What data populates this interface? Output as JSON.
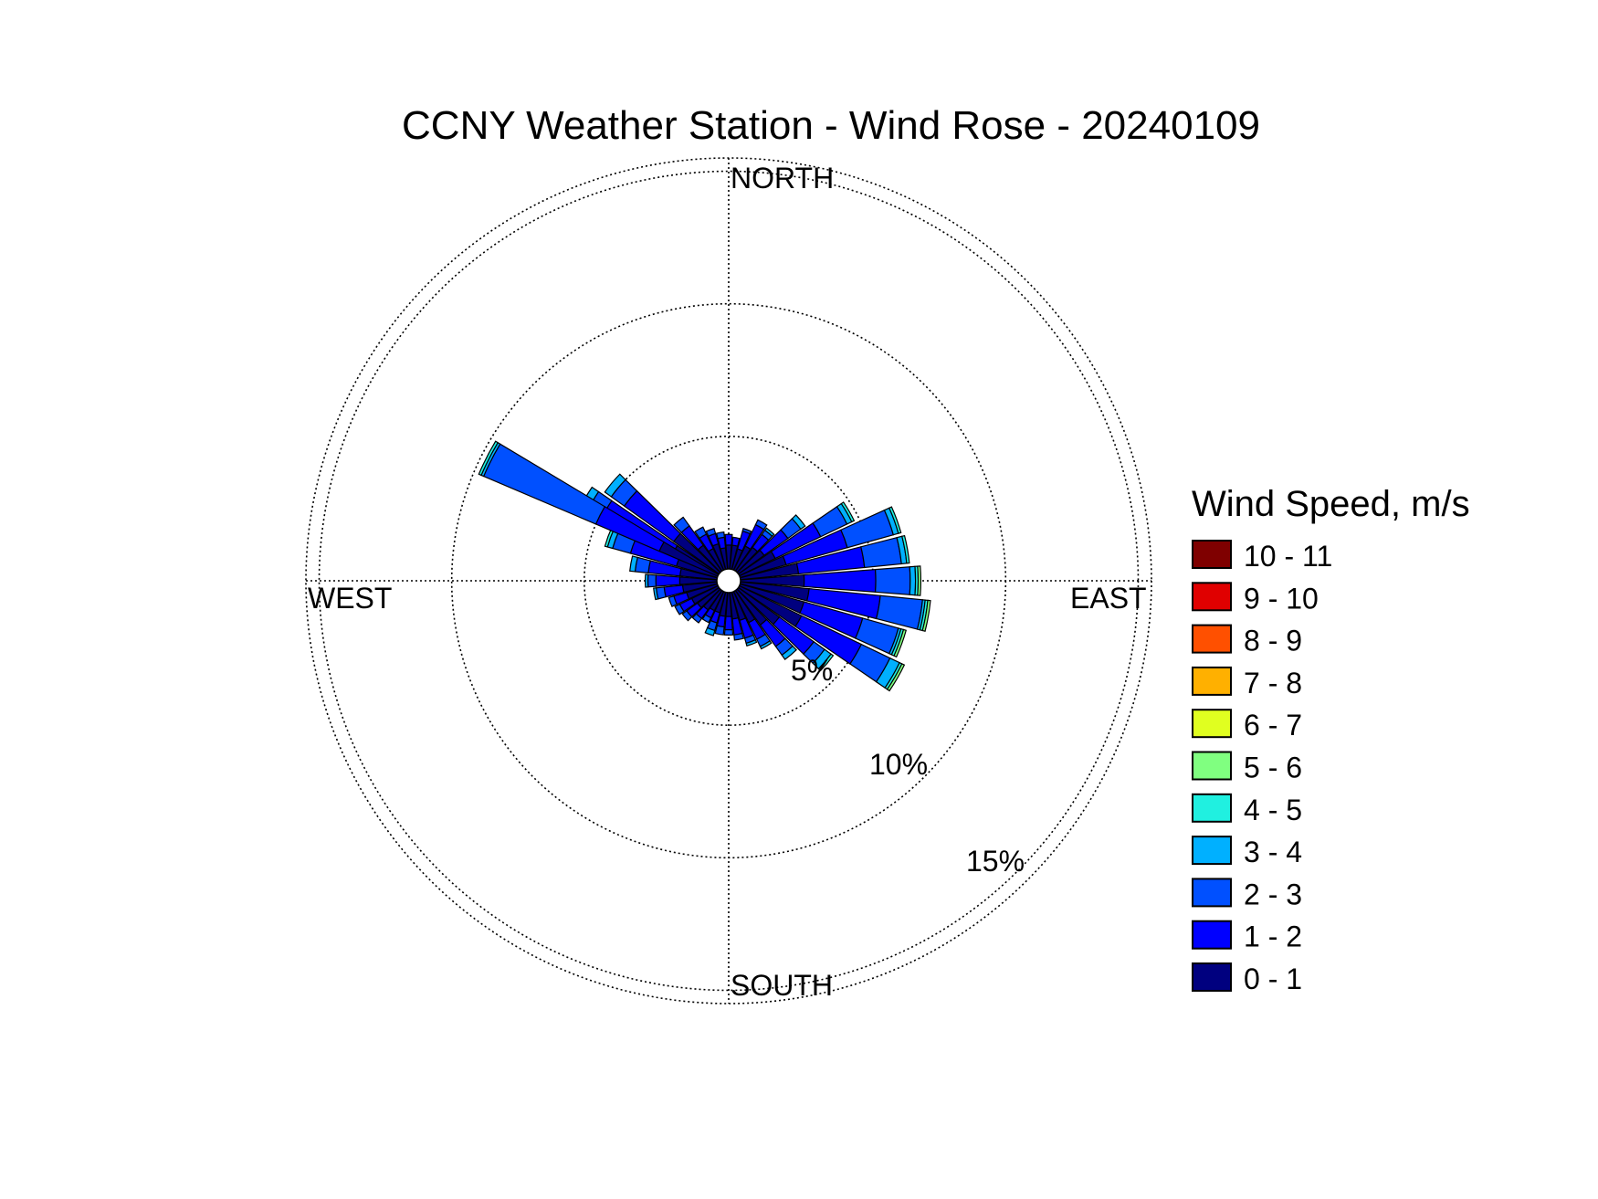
{
  "chart_data": {
    "type": "windrose",
    "title": "CCNY Weather Station - Wind Rose - 20240109",
    "directions": {
      "north": "NORTH",
      "east": "EAST",
      "south": "SOUTH",
      "west": "WEST"
    },
    "rings": [
      {
        "value": 5,
        "label": "5%"
      },
      {
        "value": 10,
        "label": "10%"
      },
      {
        "value": 15,
        "label": "15%"
      }
    ],
    "rmax": 15.5,
    "grid": true,
    "legend": {
      "title": "Wind Speed, m/s",
      "placement": "right",
      "bins": [
        {
          "label": "0 - 1",
          "color": "#00007f"
        },
        {
          "label": "1 - 2",
          "color": "#0000ff"
        },
        {
          "label": "2 - 3",
          "color": "#0050ff"
        },
        {
          "label": "3 - 4",
          "color": "#00b0ff"
        },
        {
          "label": "4 - 5",
          "color": "#20f0e0"
        },
        {
          "label": "5 - 6",
          "color": "#80ff80"
        },
        {
          "label": "6 - 7",
          "color": "#e0ff20"
        },
        {
          "label": "7 - 8",
          "color": "#ffb000"
        },
        {
          "label": "8 - 9",
          "color": "#ff5000"
        },
        {
          "label": "9 - 10",
          "color": "#e00000"
        },
        {
          "label": "10 - 11",
          "color": "#7f0000"
        }
      ]
    },
    "sector_width_deg": 10,
    "sectors": [
      {
        "dir": 0,
        "cum": [
          0.9,
          1.3
        ]
      },
      {
        "dir": 10,
        "cum": [
          0.9,
          1.2
        ]
      },
      {
        "dir": 20,
        "cum": [
          0.8,
          1.5,
          1.6
        ]
      },
      {
        "dir": 30,
        "cum": [
          1.0,
          1.9,
          2.1
        ]
      },
      {
        "dir": 40,
        "cum": [
          1.1,
          1.7,
          1.9,
          2.0
        ]
      },
      {
        "dir": 50,
        "cum": [
          1.2,
          2.3,
          2.9,
          3.1
        ]
      },
      {
        "dir": 60,
        "cum": [
          1.5,
          3.4,
          4.5,
          4.7,
          4.8
        ]
      },
      {
        "dir": 70,
        "cum": [
          1.8,
          4.2,
          6.0,
          6.2,
          6.3
        ]
      },
      {
        "dir": 80,
        "cum": [
          2.2,
          4.7,
          6.1,
          6.3,
          6.4
        ]
      },
      {
        "dir": 90,
        "cum": [
          2.4,
          5.1,
          6.4,
          6.6,
          6.7,
          6.8
        ]
      },
      {
        "dir": 100,
        "cum": [
          2.6,
          5.3,
          6.9,
          7.0,
          7.1,
          7.2
        ]
      },
      {
        "dir": 110,
        "cum": [
          2.5,
          4.8,
          6.2,
          6.3,
          6.4,
          6.5
        ]
      },
      {
        "dir": 120,
        "cum": [
          2.6,
          5.1,
          6.3,
          6.7,
          6.8,
          6.9
        ]
      },
      {
        "dir": 130,
        "cum": [
          1.9,
          3.5,
          4.0,
          4.3,
          4.4
        ]
      },
      {
        "dir": 140,
        "cum": [
          1.6,
          2.6,
          3.0,
          3.2
        ]
      },
      {
        "dir": 150,
        "cum": [
          1.3,
          2.0,
          2.3,
          2.4
        ]
      },
      {
        "dir": 160,
        "cum": [
          1.1,
          1.8,
          2.0,
          2.1
        ]
      },
      {
        "dir": 170,
        "cum": [
          1.0,
          1.6,
          1.8
        ]
      },
      {
        "dir": 180,
        "cum": [
          0.9,
          1.4,
          1.6
        ]
      },
      {
        "dir": 190,
        "cum": [
          0.9,
          1.3,
          1.6
        ]
      },
      {
        "dir": 200,
        "cum": [
          0.8,
          1.2,
          1.5,
          1.7
        ]
      },
      {
        "dir": 210,
        "cum": [
          0.8,
          1.1,
          1.3
        ]
      },
      {
        "dir": 220,
        "cum": [
          0.9,
          1.3,
          1.5
        ]
      },
      {
        "dir": 230,
        "cum": [
          1.0,
          1.5,
          1.7
        ]
      },
      {
        "dir": 240,
        "cum": [
          1.1,
          1.6,
          1.8
        ]
      },
      {
        "dir": 250,
        "cum": [
          1.2,
          1.7,
          1.9
        ]
      },
      {
        "dir": 260,
        "cum": [
          1.3,
          2.0,
          2.3,
          2.4
        ]
      },
      {
        "dir": 270,
        "cum": [
          1.4,
          2.3,
          2.6,
          2.7
        ]
      },
      {
        "dir": 280,
        "cum": [
          1.4,
          2.6,
          3.1,
          3.3
        ]
      },
      {
        "dir": 290,
        "cum": [
          1.6,
          3.4,
          4.1,
          4.3,
          4.4
        ]
      },
      {
        "dir": 300,
        "cum": [
          1.9,
          4.9,
          5.5,
          5.8
        ]
      },
      {
        "dir": 310,
        "cum": [
          2.1,
          4.4,
          5.0,
          5.3
        ]
      },
      {
        "dir": 320,
        "cum": [
          1.2,
          2.1,
          2.5
        ]
      },
      {
        "dir": 330,
        "cum": [
          0.9,
          1.5,
          1.8
        ]
      },
      {
        "dir": 340,
        "cum": [
          1.0,
          1.4,
          1.6
        ]
      },
      {
        "dir": 350,
        "cum": [
          0.8,
          1.2,
          1.4
        ]
      },
      {
        "dir": 297,
        "width": 9,
        "cum": [
          2.4,
          5.0,
          9.6,
          9.7,
          9.8
        ]
      }
    ]
  }
}
